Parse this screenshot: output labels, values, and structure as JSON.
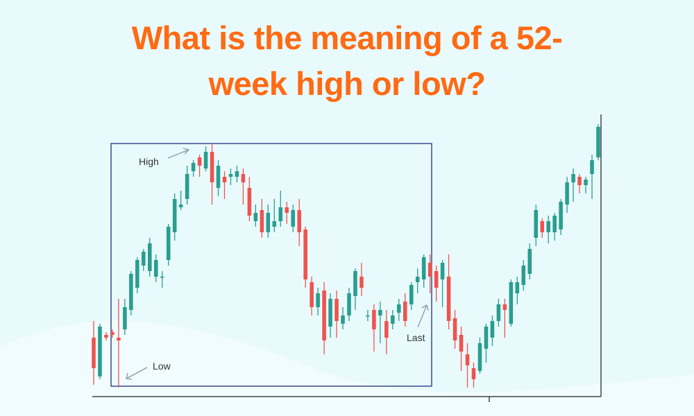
{
  "chart_data": {
    "type": "candlestick",
    "title": "What is the meaning of a 52-week high or low?",
    "annotations": [
      "High",
      "Low",
      "Last"
    ],
    "up_color": "#2a9d8f",
    "down_color": "#ef5350",
    "ylim": [
      0,
      100
    ],
    "open": [
      22,
      8,
      23,
      24,
      22,
      25,
      32,
      40,
      48,
      46,
      44,
      44,
      50,
      60,
      69,
      72,
      82,
      87,
      83,
      89,
      76,
      80,
      80,
      80,
      81,
      76,
      64,
      68,
      60,
      62,
      64,
      69,
      62,
      68,
      61,
      42,
      33,
      39,
      26,
      36,
      27,
      30,
      37,
      44,
      30,
      32,
      30,
      28,
      27,
      31,
      35,
      34,
      42,
      43,
      49,
      46,
      43,
      44,
      29,
      23,
      16,
      11,
      10,
      18,
      22,
      28,
      34,
      27,
      38,
      41,
      45,
      58,
      64,
      60,
      60,
      61,
      70,
      78,
      80,
      77,
      81,
      87
    ],
    "high": [
      28,
      27,
      24,
      25,
      36,
      36,
      46,
      51,
      54,
      58,
      52,
      46,
      63,
      74,
      75,
      84,
      86,
      88,
      91,
      92,
      86,
      82,
      83,
      84,
      83,
      80,
      70,
      72,
      70,
      72,
      75,
      71,
      70,
      72,
      62,
      44,
      40,
      42,
      38,
      39,
      33,
      40,
      47,
      49,
      32,
      34,
      35,
      32,
      32,
      36,
      38,
      42,
      47,
      52,
      52,
      48,
      50,
      52,
      32,
      26,
      20,
      13,
      22,
      27,
      30,
      36,
      36,
      43,
      44,
      50,
      56,
      70,
      65,
      66,
      67,
      72,
      80,
      83,
      81,
      80,
      88,
      99
    ],
    "low": [
      5,
      7,
      21,
      22,
      4,
      23,
      30,
      38,
      46,
      44,
      42,
      40,
      48,
      57,
      68,
      70,
      80,
      80,
      82,
      70,
      73,
      72,
      77,
      78,
      70,
      64,
      62,
      58,
      58,
      60,
      62,
      63,
      60,
      55,
      40,
      30,
      30,
      16,
      22,
      22,
      25,
      28,
      32,
      37,
      28,
      17,
      20,
      16,
      25,
      28,
      26,
      32,
      38,
      40,
      38,
      35,
      33,
      25,
      18,
      10,
      4,
      4,
      9,
      13,
      19,
      26,
      22,
      26,
      34,
      39,
      43,
      55,
      58,
      56,
      57,
      59,
      67,
      71,
      74,
      74,
      72,
      86
    ],
    "close": [
      11,
      26,
      22,
      23,
      21,
      33,
      45,
      50,
      53,
      56,
      50,
      44,
      62,
      72,
      70,
      81,
      85,
      84,
      89,
      78,
      84,
      78,
      81,
      82,
      78,
      66,
      67,
      60,
      67,
      64,
      69,
      67,
      68,
      60,
      43,
      33,
      38,
      21,
      36,
      28,
      30,
      38,
      46,
      40,
      30,
      25,
      32,
      22,
      30,
      34,
      28,
      41,
      44,
      51,
      44,
      40,
      49,
      28,
      21,
      17,
      12,
      7,
      20,
      26,
      28,
      34,
      32,
      42,
      42,
      48,
      54,
      68,
      60,
      64,
      66,
      71,
      78,
      81,
      77,
      79,
      86,
      98
    ]
  }
}
